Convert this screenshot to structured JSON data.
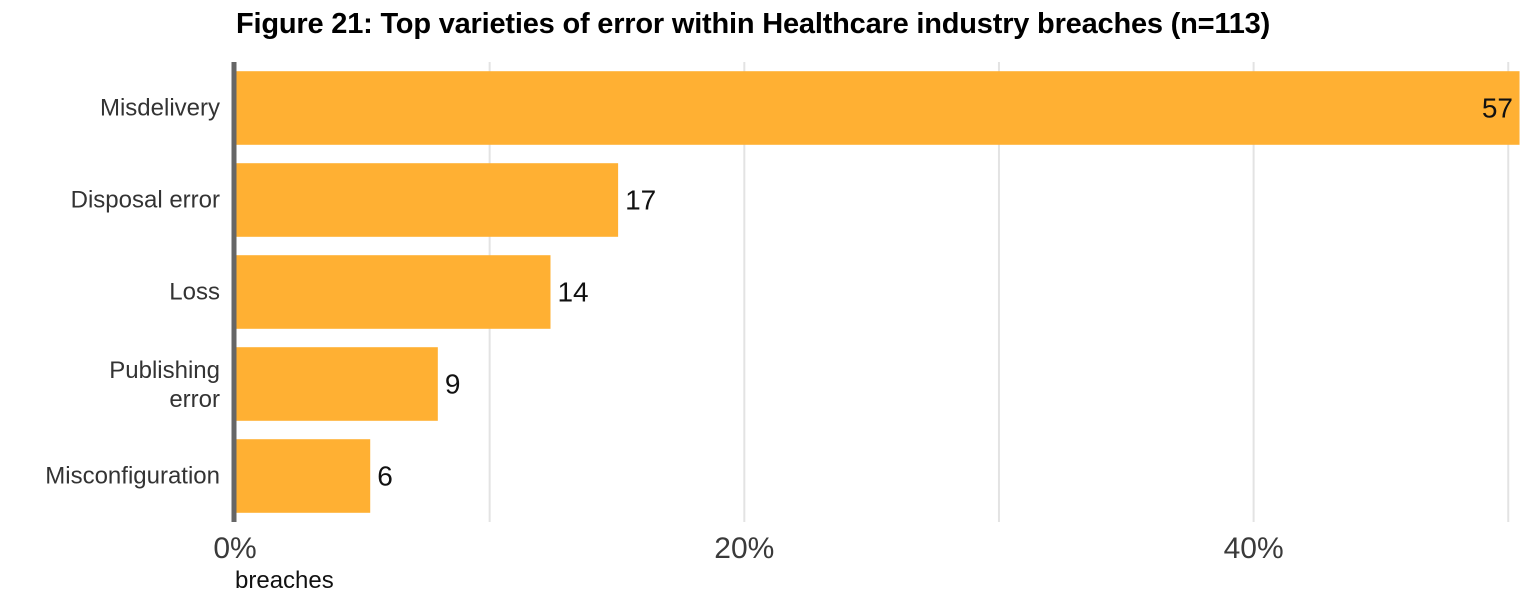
{
  "chart_data": {
    "type": "bar",
    "orientation": "horizontal",
    "title": "Figure 21: Top varieties of error within Healthcare industry breaches (n=113)",
    "categories": [
      "Misdelivery",
      "Disposal error",
      "Loss",
      "Publishing error",
      "Misconfiguration"
    ],
    "values": [
      57,
      17,
      14,
      9,
      6
    ],
    "value_labels": [
      "57",
      "17",
      "14",
      "9",
      "6"
    ],
    "x_unit_percent_of": 113,
    "xlim_percent": [
      0,
      50.5
    ],
    "x_ticks": [
      0,
      20,
      40
    ],
    "x_tick_labels": [
      "0%",
      "20%",
      "40%"
    ],
    "minor_gridlines_percent": [
      10,
      30,
      50
    ],
    "xlabel": "breaches",
    "ylabel": "",
    "grid": true,
    "colors": {
      "bar": "#FFB033",
      "grid": "#E3E3E3",
      "axis": "#666666"
    }
  }
}
